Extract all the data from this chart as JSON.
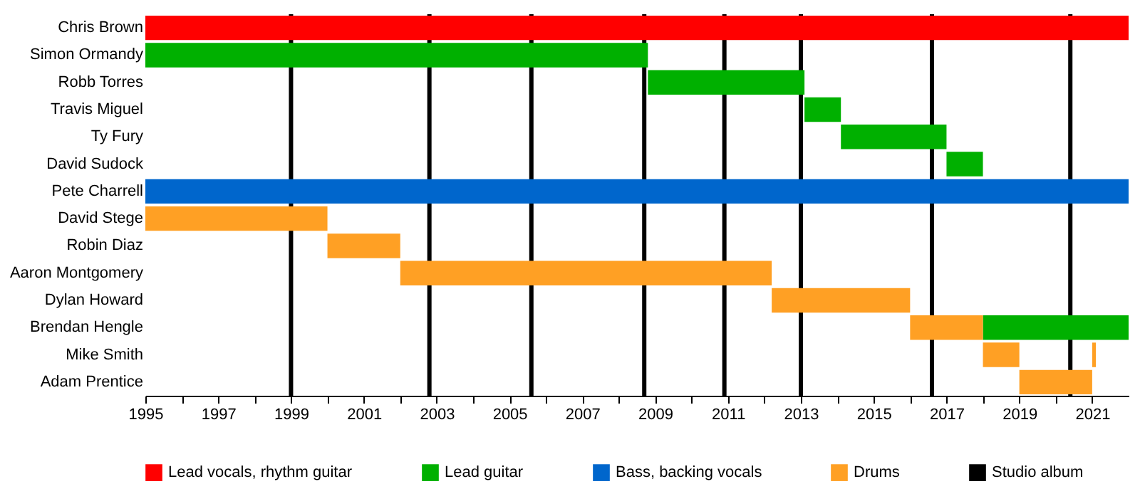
{
  "chart_data": {
    "type": "bar",
    "orientation": "horizontal",
    "categories": [
      "Chris Brown",
      "Simon Ormandy",
      "Robb Torres",
      "Travis Miguel",
      "Ty Fury",
      "David Sudock",
      "Pete Charrell",
      "David Stege",
      "Robin Diaz",
      "Aaron Montgomery",
      "Dylan Howard",
      "Brendan Hengle",
      "Mike Smith",
      "Adam Prentice"
    ],
    "series": [
      {
        "name": "Lead vocals, rhythm guitar",
        "color": "#ff0000",
        "base": [
          1995,
          null,
          null,
          null,
          null,
          null,
          null,
          null,
          null,
          null,
          null,
          null,
          null,
          null
        ],
        "values": [
          27,
          null,
          null,
          null,
          null,
          null,
          null,
          null,
          null,
          null,
          null,
          null,
          null,
          null
        ]
      },
      {
        "name": "Lead guitar",
        "color": "#00b000",
        "base": [
          null,
          1995,
          2008.8,
          2013.1,
          2014.1,
          2017.0,
          null,
          null,
          null,
          null,
          null,
          2018.0,
          null,
          null
        ],
        "values": [
          null,
          13.8,
          4.3,
          1.0,
          2.9,
          1.0,
          null,
          null,
          null,
          null,
          null,
          4.0,
          null,
          null
        ]
      },
      {
        "name": "Bass, backing vocals",
        "color": "#0066cc",
        "base": [
          null,
          null,
          null,
          null,
          null,
          null,
          1995,
          null,
          null,
          null,
          null,
          null,
          null,
          null
        ],
        "values": [
          null,
          null,
          null,
          null,
          null,
          null,
          27,
          null,
          null,
          null,
          null,
          null,
          null,
          null
        ]
      },
      {
        "name": "Drums",
        "color": "#ffa024",
        "base": [
          null,
          null,
          null,
          null,
          null,
          null,
          null,
          1995,
          2000.0,
          2002.0,
          2012.2,
          2016.0,
          2018.0,
          2019.0
        ],
        "values": [
          null,
          null,
          null,
          null,
          null,
          null,
          null,
          5.0,
          2.0,
          10.2,
          3.8,
          2.0,
          1.0,
          2.0
        ]
      },
      {
        "color": "#ffa024",
        "base": [
          null,
          null,
          null,
          null,
          null,
          null,
          null,
          null,
          null,
          null,
          null,
          null,
          2021.0,
          null
        ],
        "values": [
          null,
          null,
          null,
          null,
          null,
          null,
          null,
          null,
          null,
          null,
          null,
          null,
          0.1,
          null
        ]
      }
    ],
    "ref_lines": [
      {
        "axis": "x",
        "value": 1999.0,
        "label": "Studio album",
        "color": "#000000"
      },
      {
        "axis": "x",
        "value": 2002.8,
        "color": "#000000"
      },
      {
        "axis": "x",
        "value": 2005.6,
        "color": "#000000"
      },
      {
        "axis": "x",
        "value": 2008.7,
        "color": "#000000"
      },
      {
        "axis": "x",
        "value": 2010.9,
        "color": "#000000"
      },
      {
        "axis": "x",
        "value": 2013.0,
        "color": "#000000"
      },
      {
        "axis": "x",
        "value": 2016.6,
        "color": "#000000"
      },
      {
        "axis": "x",
        "value": 2020.4,
        "color": "#000000"
      }
    ],
    "xlim": [
      1995,
      2022
    ],
    "xticks": [
      1995,
      {
        "value": 1996,
        "label": null
      },
      1997,
      {
        "value": 1998,
        "label": null
      },
      1999,
      {
        "value": 2000,
        "label": null
      },
      2001,
      {
        "value": 2002,
        "label": null
      },
      2003,
      {
        "value": 2004,
        "label": null
      },
      2005,
      {
        "value": 2006,
        "label": null
      },
      2007,
      {
        "value": 2008,
        "label": null
      },
      2009,
      {
        "value": 2010,
        "label": null
      },
      2011,
      {
        "value": 2012,
        "label": null
      },
      2013,
      {
        "value": 2014,
        "label": null
      },
      2015,
      {
        "value": 2016,
        "label": null
      },
      2017,
      {
        "value": 2018,
        "label": null
      },
      2019,
      {
        "value": 2020,
        "label": null
      },
      2021
    ],
    "legend": "bottom"
  }
}
